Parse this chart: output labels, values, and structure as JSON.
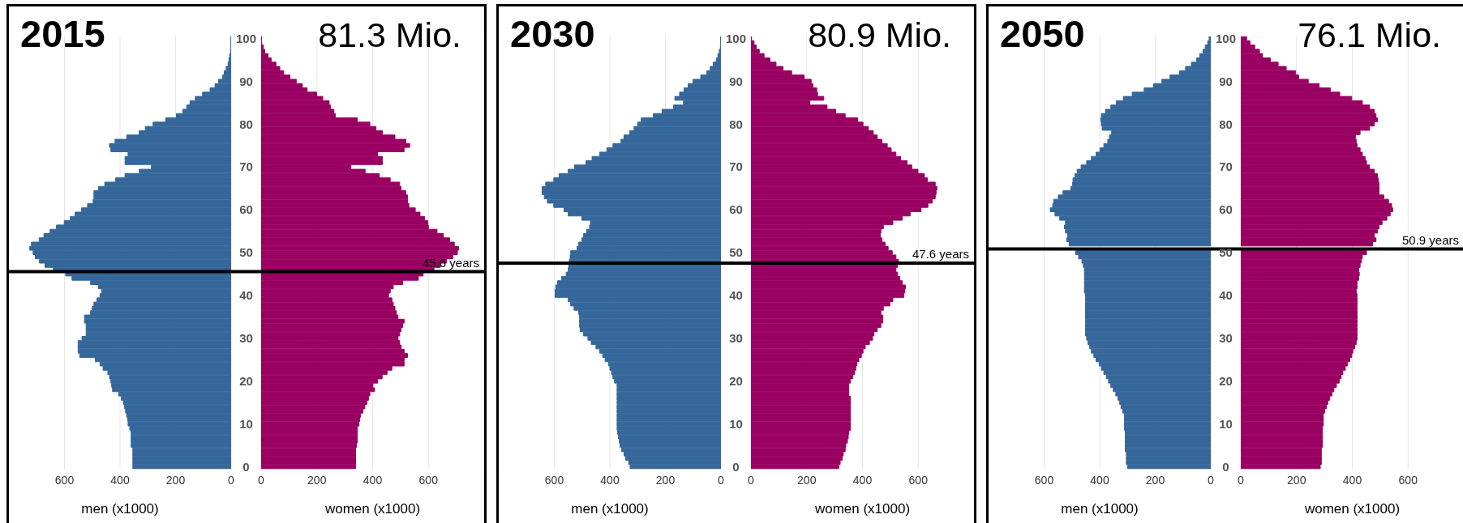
{
  "chart_data": [
    {
      "type": "bar",
      "orientation": "horizontal",
      "title": "2015",
      "xlabel": "men (x1000)",
      "color": "#35679a",
      "xlim": [
        800,
        0
      ],
      "xticks": [
        600,
        400,
        200,
        0
      ],
      "ylim": [
        -0.5,
        100.5
      ],
      "yticks": [
        0,
        10,
        20,
        30,
        40,
        50,
        60,
        70,
        80,
        90,
        100
      ],
      "grid": "x",
      "tick_labels": "x",
      "ref_lines": [
        {
          "axis": "y",
          "value": 45.6,
          "color": "#000000"
        }
      ],
      "x": [
        0,
        1,
        2,
        3,
        4,
        5,
        6,
        7,
        8,
        9,
        10,
        11,
        12,
        13,
        14,
        15,
        16,
        17,
        18,
        19,
        20,
        21,
        22,
        23,
        24,
        25,
        26,
        27,
        28,
        29,
        30,
        31,
        32,
        33,
        34,
        35,
        36,
        37,
        38,
        39,
        40,
        41,
        42,
        43,
        44,
        45,
        46,
        47,
        48,
        49,
        50,
        51,
        52,
        53,
        54,
        55,
        56,
        57,
        58,
        59,
        60,
        61,
        62,
        63,
        64,
        65,
        66,
        67,
        68,
        69,
        70,
        71,
        72,
        73,
        74,
        75,
        76,
        77,
        78,
        79,
        80,
        81,
        82,
        83,
        84,
        85,
        86,
        87,
        88,
        89,
        90,
        91,
        92,
        93,
        94,
        95,
        96,
        97,
        98,
        99,
        100
      ],
      "values": [
        354,
        354,
        354,
        354,
        354,
        360,
        360,
        360,
        360,
        365,
        371,
        372,
        376,
        380,
        384,
        388,
        395,
        405,
        427,
        430,
        433,
        438,
        444,
        461,
        472,
        489,
        545,
        551,
        551,
        551,
        537,
        522,
        522,
        522,
        528,
        528,
        506,
        500,
        494,
        483,
        472,
        466,
        478,
        506,
        573,
        596,
        640,
        670,
        690,
        705,
        713,
        725,
        719,
        691,
        674,
        652,
        629,
        601,
        579,
        562,
        539,
        517,
        497,
        494,
        494,
        478,
        455,
        416,
        382,
        331,
        287,
        382,
        382,
        371,
        433,
        438,
        418,
        376,
        331,
        309,
        281,
        236,
        197,
        174,
        160,
        148,
        129,
        103,
        76,
        58,
        45,
        31,
        25,
        18,
        11,
        8,
        5,
        2,
        1,
        1,
        1
      ]
    },
    {
      "type": "bar",
      "orientation": "horizontal",
      "xlabel": "women (x1000)",
      "annotations": [
        "81.3 Mio."
      ],
      "color": "#990061",
      "xlim": [
        0,
        800
      ],
      "xticks": [
        0,
        200,
        400,
        600
      ],
      "ylim": [
        -0.5,
        100.5
      ],
      "yticks": [
        0,
        10,
        20,
        30,
        40,
        50,
        60,
        70,
        80,
        90,
        100
      ],
      "grid": "x",
      "ref_lines": [
        {
          "axis": "y",
          "value": 45.6,
          "label": "45.6 years",
          "color": "#000000"
        }
      ],
      "x": [
        0,
        1,
        2,
        3,
        4,
        5,
        6,
        7,
        8,
        9,
        10,
        11,
        12,
        13,
        14,
        15,
        16,
        17,
        18,
        19,
        20,
        21,
        22,
        23,
        24,
        25,
        26,
        27,
        28,
        29,
        30,
        31,
        32,
        33,
        34,
        35,
        36,
        37,
        38,
        39,
        40,
        41,
        42,
        43,
        44,
        45,
        46,
        47,
        48,
        49,
        50,
        51,
        52,
        53,
        54,
        55,
        56,
        57,
        58,
        59,
        60,
        61,
        62,
        63,
        64,
        65,
        66,
        67,
        68,
        69,
        70,
        71,
        72,
        73,
        74,
        75,
        76,
        77,
        78,
        79,
        80,
        81,
        82,
        83,
        84,
        85,
        86,
        87,
        88,
        89,
        90,
        91,
        92,
        93,
        94,
        95,
        96,
        97,
        98,
        99,
        100
      ],
      "values": [
        339,
        339,
        339,
        339,
        339,
        342,
        345,
        345,
        345,
        345,
        351,
        353,
        356,
        365,
        372,
        379,
        385,
        390,
        407,
        401,
        418,
        434,
        452,
        469,
        513,
        513,
        525,
        513,
        502,
        497,
        491,
        497,
        502,
        508,
        513,
        491,
        485,
        480,
        474,
        469,
        457,
        463,
        474,
        508,
        564,
        581,
        620,
        643,
        665,
        688,
        704,
        708,
        693,
        676,
        654,
        631,
        600,
        598,
        586,
        570,
        553,
        530,
        525,
        525,
        519,
        502,
        497,
        463,
        424,
        373,
        322,
        435,
        435,
        418,
        513,
        533,
        519,
        480,
        435,
        412,
        390,
        345,
        266,
        261,
        249,
        244,
        221,
        199,
        165,
        148,
        126,
        103,
        81,
        67,
        53,
        36,
        25,
        13,
        8,
        2,
        1
      ]
    },
    {
      "type": "bar",
      "orientation": "horizontal",
      "title": "2030",
      "xlabel": "men (x1000)",
      "color": "#35679a",
      "xlim": [
        800,
        0
      ],
      "xticks": [
        600,
        400,
        200,
        0
      ],
      "ylim": [
        -0.5,
        100.5
      ],
      "yticks": [
        0,
        10,
        20,
        30,
        40,
        50,
        60,
        70,
        80,
        90,
        100
      ],
      "grid": "x",
      "tick_labels": "x",
      "ref_lines": [
        {
          "axis": "y",
          "value": 47.6,
          "color": "#000000"
        }
      ],
      "x": [
        0,
        1,
        2,
        3,
        4,
        5,
        6,
        7,
        8,
        9,
        10,
        11,
        12,
        13,
        14,
        15,
        16,
        17,
        18,
        19,
        20,
        21,
        22,
        23,
        24,
        25,
        26,
        27,
        28,
        29,
        30,
        31,
        32,
        33,
        34,
        35,
        36,
        37,
        38,
        39,
        40,
        41,
        42,
        43,
        44,
        45,
        46,
        47,
        48,
        49,
        50,
        51,
        52,
        53,
        54,
        55,
        56,
        57,
        58,
        59,
        60,
        61,
        62,
        63,
        64,
        65,
        66,
        67,
        68,
        69,
        70,
        71,
        72,
        73,
        74,
        75,
        76,
        77,
        78,
        79,
        80,
        81,
        82,
        83,
        84,
        85,
        86,
        87,
        88,
        89,
        90,
        91,
        92,
        93,
        94,
        95,
        96,
        97,
        98,
        99,
        100
      ],
      "values": [
        327,
        332,
        343,
        349,
        358,
        363,
        366,
        369,
        372,
        374,
        374,
        374,
        374,
        374,
        374,
        374,
        374,
        374,
        374,
        374,
        383,
        389,
        394,
        400,
        405,
        417,
        426,
        437,
        450,
        467,
        479,
        495,
        507,
        509,
        509,
        509,
        512,
        529,
        541,
        550,
        597,
        597,
        595,
        588,
        574,
        557,
        550,
        548,
        546,
        543,
        541,
        518,
        512,
        501,
        495,
        484,
        473,
        470,
        501,
        550,
        565,
        602,
        625,
        636,
        644,
        644,
        631,
        602,
        583,
        550,
        527,
        486,
        464,
        437,
        411,
        389,
        360,
        349,
        329,
        313,
        300,
        287,
        244,
        212,
        171,
        135,
        166,
        149,
        133,
        118,
        101,
        73,
        51,
        39,
        28,
        17,
        11,
        6,
        2,
        1,
        1
      ]
    },
    {
      "type": "bar",
      "orientation": "horizontal",
      "xlabel": "women (x1000)",
      "annotations": [
        "80.9 Mio."
      ],
      "color": "#990061",
      "xlim": [
        0,
        800
      ],
      "xticks": [
        0,
        200,
        400,
        600
      ],
      "ylim": [
        -0.5,
        100.5
      ],
      "yticks": [
        0,
        10,
        20,
        30,
        40,
        50,
        60,
        70,
        80,
        90,
        100
      ],
      "grid": "x",
      "ref_lines": [
        {
          "axis": "y",
          "value": 47.6,
          "label": "47.6 years",
          "color": "#000000"
        }
      ],
      "x": [
        0,
        1,
        2,
        3,
        4,
        5,
        6,
        7,
        8,
        9,
        10,
        11,
        12,
        13,
        14,
        15,
        16,
        17,
        18,
        19,
        20,
        21,
        22,
        23,
        24,
        25,
        26,
        27,
        28,
        29,
        30,
        31,
        32,
        33,
        34,
        35,
        36,
        37,
        38,
        39,
        40,
        41,
        42,
        43,
        44,
        45,
        46,
        47,
        48,
        49,
        50,
        51,
        52,
        53,
        54,
        55,
        56,
        57,
        58,
        59,
        60,
        61,
        62,
        63,
        64,
        65,
        66,
        67,
        68,
        69,
        70,
        71,
        72,
        73,
        74,
        75,
        76,
        77,
        78,
        79,
        80,
        81,
        82,
        83,
        84,
        85,
        86,
        87,
        88,
        89,
        90,
        91,
        92,
        93,
        94,
        95,
        96,
        97,
        98,
        99,
        100
      ],
      "values": [
        315,
        320,
        327,
        331,
        338,
        340,
        346,
        349,
        351,
        357,
        357,
        357,
        357,
        357,
        357,
        357,
        357,
        351,
        351,
        351,
        357,
        365,
        372,
        376,
        380,
        387,
        396,
        402,
        410,
        425,
        436,
        441,
        453,
        466,
        473,
        473,
        466,
        475,
        498,
        509,
        548,
        552,
        554,
        543,
        534,
        526,
        520,
        526,
        529,
        520,
        507,
        492,
        481,
        470,
        464,
        466,
        475,
        509,
        543,
        571,
        610,
        635,
        650,
        661,
        664,
        667,
        661,
        633,
        622,
        599,
        577,
        560,
        537,
        520,
        503,
        489,
        470,
        453,
        439,
        421,
        402,
        383,
        338,
        304,
        273,
        211,
        261,
        239,
        236,
        222,
        216,
        191,
        146,
        115,
        90,
        68,
        47,
        30,
        19,
        11,
        2
      ]
    },
    {
      "type": "bar",
      "orientation": "horizontal",
      "title": "2050",
      "xlabel": "men (x1000)",
      "color": "#35679a",
      "xlim": [
        800,
        0
      ],
      "xticks": [
        600,
        400,
        200,
        0
      ],
      "ylim": [
        -0.5,
        100.5
      ],
      "yticks": [
        0,
        10,
        20,
        30,
        40,
        50,
        60,
        70,
        80,
        90,
        100
      ],
      "grid": "x",
      "tick_labels": "x",
      "ref_lines": [
        {
          "axis": "y",
          "value": 50.9,
          "color": "#000000"
        }
      ],
      "x": [
        0,
        1,
        2,
        3,
        4,
        5,
        6,
        7,
        8,
        9,
        10,
        11,
        12,
        13,
        14,
        15,
        16,
        17,
        18,
        19,
        20,
        21,
        22,
        23,
        24,
        25,
        26,
        27,
        28,
        29,
        30,
        31,
        32,
        33,
        34,
        35,
        36,
        37,
        38,
        39,
        40,
        41,
        42,
        43,
        44,
        45,
        46,
        47,
        48,
        49,
        50,
        51,
        52,
        53,
        54,
        55,
        56,
        57,
        58,
        59,
        60,
        61,
        62,
        63,
        64,
        65,
        66,
        67,
        68,
        69,
        70,
        71,
        72,
        73,
        74,
        75,
        76,
        77,
        78,
        79,
        80,
        81,
        82,
        83,
        84,
        85,
        86,
        87,
        88,
        89,
        90,
        91,
        92,
        93,
        94,
        95,
        96,
        97,
        98,
        99,
        100
      ],
      "values": [
        300,
        304,
        304,
        304,
        308,
        308,
        308,
        308,
        308,
        311,
        311,
        311,
        311,
        317,
        323,
        328,
        334,
        342,
        351,
        360,
        368,
        376,
        385,
        394,
        402,
        413,
        421,
        430,
        436,
        442,
        447,
        451,
        451,
        451,
        451,
        451,
        451,
        451,
        451,
        451,
        451,
        455,
        455,
        455,
        455,
        455,
        455,
        459,
        464,
        476,
        487,
        null,
        510,
        519,
        515,
        523,
        527,
        523,
        544,
        561,
        578,
        569,
        566,
        549,
        532,
        504,
        498,
        496,
        489,
        481,
        467,
        447,
        430,
        413,
        399,
        385,
        371,
        365,
        357,
        391,
        394,
        396,
        394,
        379,
        360,
        340,
        315,
        283,
        240,
        206,
        176,
        147,
        113,
        91,
        70,
        51,
        40,
        28,
        20,
        11,
        6
      ]
    },
    {
      "type": "bar",
      "orientation": "horizontal",
      "xlabel": "women (x1000)",
      "annotations": [
        "76.1 Mio."
      ],
      "color": "#990061",
      "xlim": [
        0,
        800
      ],
      "xticks": [
        0,
        200,
        400,
        600
      ],
      "ylim": [
        -0.5,
        100.5
      ],
      "yticks": [
        0,
        10,
        20,
        30,
        40,
        50,
        60,
        70,
        80,
        90,
        100
      ],
      "grid": "x",
      "ref_lines": [
        {
          "axis": "y",
          "value": 50.9,
          "label": "50.9 years",
          "color": "#000000"
        }
      ],
      "x": [
        0,
        1,
        2,
        3,
        4,
        5,
        6,
        7,
        8,
        9,
        10,
        11,
        12,
        13,
        14,
        15,
        16,
        17,
        18,
        19,
        20,
        21,
        22,
        23,
        24,
        25,
        26,
        27,
        28,
        29,
        30,
        31,
        32,
        33,
        34,
        35,
        36,
        37,
        38,
        39,
        40,
        41,
        42,
        43,
        44,
        45,
        46,
        47,
        48,
        49,
        50,
        51,
        52,
        53,
        54,
        55,
        56,
        57,
        58,
        59,
        60,
        61,
        62,
        63,
        64,
        65,
        66,
        67,
        68,
        69,
        70,
        71,
        72,
        73,
        74,
        75,
        76,
        77,
        78,
        79,
        80,
        81,
        82,
        83,
        84,
        85,
        86,
        87,
        88,
        89,
        90,
        91,
        92,
        93,
        94,
        95,
        96,
        97,
        98,
        99,
        100
      ],
      "values": [
        285,
        289,
        289,
        289,
        289,
        293,
        293,
        293,
        293,
        293,
        296,
        296,
        296,
        301,
        307,
        312,
        319,
        327,
        334,
        343,
        353,
        360,
        366,
        375,
        383,
        391,
        398,
        402,
        409,
        414,
        417,
        417,
        417,
        417,
        417,
        417,
        417,
        417,
        417,
        417,
        417,
        414,
        417,
        417,
        423,
        425,
        423,
        428,
        432,
        436,
        451,
        null,
        473,
        485,
        479,
        490,
        496,
        507,
        524,
        536,
        545,
        541,
        530,
        513,
        496,
        496,
        496,
        493,
        490,
        479,
        462,
        451,
        446,
        436,
        428,
        417,
        414,
        411,
        428,
        462,
        479,
        490,
        485,
        479,
        462,
        436,
        398,
        355,
        321,
        281,
        242,
        208,
        197,
        163,
        134,
        106,
        78,
        67,
        50,
        33,
        21
      ]
    }
  ]
}
